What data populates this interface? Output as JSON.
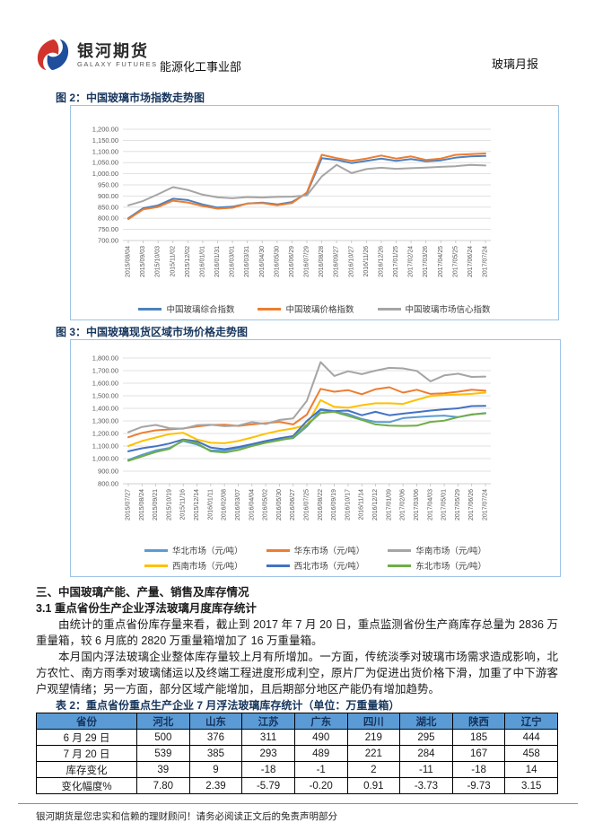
{
  "header": {
    "logo_cn": "银河期货",
    "logo_en": "GALAXY FUTURES",
    "department": "能源化工事业部",
    "report_name": "玻璃月报",
    "logo_red": "#D0342C",
    "logo_blue": "#1F4E9C"
  },
  "figure2_caption": "图 2：中国玻璃市场指数走势图",
  "figure3_caption": "图 3：中国玻璃现货区域市场价格走势图",
  "chart_data": [
    {
      "type": "line",
      "title": "中国玻璃市场指数走势图",
      "ylim": [
        700,
        1200
      ],
      "ytick": 50,
      "grid": true,
      "legend_position": "bottom",
      "legend_cols": 3,
      "x": [
        "2015/08/04",
        "2015/09/03",
        "2015/10/03",
        "2015/11/02",
        "2015/12/02",
        "2016/01/01",
        "2016/01/31",
        "2016/03/01",
        "2016/03/31",
        "2016/04/30",
        "2016/05/30",
        "2016/06/29",
        "2016/07/29",
        "2016/08/28",
        "2016/09/27",
        "2016/10/27",
        "2016/11/26",
        "2016/12/26",
        "2017/01/25",
        "2017/02/24",
        "2017/03/26",
        "2017/04/25",
        "2017/05/25",
        "2017/06/24",
        "2017/07/24"
      ],
      "series": [
        {
          "name": "中国玻璃综合指数",
          "color": "#4E81BD",
          "values": [
            800,
            845,
            858,
            888,
            882,
            862,
            848,
            852,
            866,
            870,
            862,
            873,
            912,
            1070,
            1062,
            1048,
            1058,
            1068,
            1058,
            1066,
            1056,
            1060,
            1072,
            1078,
            1080
          ]
        },
        {
          "name": "中国玻璃价格指数",
          "color": "#ED7D31",
          "values": [
            796,
            840,
            851,
            879,
            871,
            855,
            843,
            847,
            866,
            868,
            858,
            868,
            916,
            1085,
            1070,
            1058,
            1068,
            1082,
            1068,
            1078,
            1062,
            1068,
            1085,
            1088,
            1091
          ]
        },
        {
          "name": "中国玻璃市场信心指数",
          "color": "#A5A5A5",
          "values": [
            858,
            878,
            908,
            940,
            927,
            906,
            894,
            890,
            895,
            893,
            896,
            897,
            903,
            988,
            1040,
            1003,
            1021,
            1027,
            1022,
            1025,
            1028,
            1031,
            1034,
            1040,
            1037
          ]
        }
      ]
    },
    {
      "type": "line",
      "title": "中国玻璃现货区域市场价格走势图",
      "ylim": [
        800,
        1800
      ],
      "ytick": 100,
      "grid": true,
      "legend_position": "bottom",
      "legend_cols": 3,
      "x": [
        "2015/07/27",
        "2015/08/24",
        "2015/09/21",
        "2015/10/19",
        "2015/11/16",
        "2015/12/14",
        "2016/01/11",
        "2016/02/08",
        "2016/03/07",
        "2016/04/04",
        "2016/05/02",
        "2016/05/30",
        "2016/06/27",
        "2016/07/25",
        "2016/08/22",
        "2016/09/19",
        "2016/10/17",
        "2016/11/14",
        "2016/12/12",
        "2017/01/09",
        "2017/02/06",
        "2017/03/06",
        "2017/04/03",
        "2017/05/01",
        "2017/05/29",
        "2017/06/26",
        "2017/07/24"
      ],
      "series": [
        {
          "name": "华北市场（元/吨）",
          "color": "#5B9BD5",
          "values": [
            990,
            1030,
            1065,
            1085,
            1140,
            1112,
            1065,
            1062,
            1085,
            1110,
            1135,
            1150,
            1162,
            1255,
            1385,
            1372,
            1355,
            1315,
            1292,
            1290,
            1322,
            1330,
            1338,
            1342,
            1330,
            1350,
            1362
          ]
        },
        {
          "name": "华东市场（元/吨）",
          "color": "#ED7D31",
          "values": [
            1170,
            1205,
            1225,
            1232,
            1240,
            1256,
            1268,
            1270,
            1260,
            1272,
            1282,
            1292,
            1272,
            1350,
            1555,
            1532,
            1545,
            1512,
            1552,
            1568,
            1525,
            1548,
            1515,
            1520,
            1532,
            1548,
            1540
          ]
        },
        {
          "name": "华南市场（元/吨）",
          "color": "#A5A5A5",
          "values": [
            1210,
            1252,
            1268,
            1242,
            1238,
            1266,
            1270,
            1258,
            1263,
            1290,
            1275,
            1308,
            1320,
            1460,
            1768,
            1658,
            1695,
            1672,
            1700,
            1722,
            1718,
            1698,
            1615,
            1662,
            1676,
            1650,
            1653
          ]
        },
        {
          "name": "西南市场（元/吨）",
          "color": "#FFC000",
          "values": [
            1100,
            1140,
            1168,
            1195,
            1205,
            1152,
            1126,
            1122,
            1140,
            1168,
            1198,
            1222,
            1240,
            1268,
            1465,
            1412,
            1405,
            1425,
            1440,
            1440,
            1435,
            1468,
            1498,
            1505,
            1510,
            1515,
            1525
          ]
        },
        {
          "name": "西北市场（元/吨）",
          "color": "#4472C4",
          "values": [
            1058,
            1082,
            1098,
            1120,
            1152,
            1138,
            1088,
            1075,
            1092,
            1115,
            1140,
            1162,
            1180,
            1300,
            1392,
            1378,
            1382,
            1345,
            1372,
            1345,
            1358,
            1370,
            1382,
            1392,
            1400,
            1418,
            1420
          ]
        },
        {
          "name": "东北市场（元/吨）",
          "color": "#70AD47",
          "values": [
            982,
            1018,
            1052,
            1078,
            1148,
            1122,
            1058,
            1048,
            1068,
            1100,
            1126,
            1146,
            1168,
            1268,
            1362,
            1372,
            1340,
            1308,
            1272,
            1262,
            1260,
            1262,
            1292,
            1302,
            1330,
            1352,
            1360
          ]
        }
      ]
    }
  ],
  "section": {
    "heading": "三、中国玻璃产能、产量、销售及库存情况",
    "subheading": "3.1 重点省份生产企业浮法玻璃月度库存统计",
    "para1": "由统计的重点省份库存量来看，截止到 2017 年 7 月 20 日，重点监测省份生产商库存总量为 2836 万重量箱，较 6 月底的 2820 万重量箱增加了 16 万重量箱。",
    "para2": "本月国内浮法玻璃企业整体库存量较上月有所增加。一方面，传统淡季对玻璃市场需求造成影响，北方农忙、南方雨季对玻璃储运以及终端工程进度形成利空，原片厂为促进出货价格下滑，加重了中下游客户观望情绪；另一方面，部分区域产能增加，且后期部分地区产能仍有增加趋势。"
  },
  "table": {
    "caption": "表 2：重点省份重点生产企业 7 月浮法玻璃库存统计（单位：万重量箱）",
    "headers": [
      "省份",
      "河北",
      "山东",
      "江苏",
      "广东",
      "四川",
      "湖北",
      "陕西",
      "辽宁"
    ],
    "rows": [
      [
        "6 月 29 日",
        "500",
        "376",
        "311",
        "490",
        "219",
        "295",
        "185",
        "444"
      ],
      [
        "7 月 20 日",
        "539",
        "385",
        "293",
        "489",
        "221",
        "284",
        "167",
        "458"
      ],
      [
        "库存变化",
        "39",
        "9",
        "-18",
        "-1",
        "2",
        "-11",
        "-18",
        "14"
      ],
      [
        "变化幅度%",
        "7.80",
        "2.39",
        "-5.79",
        "-0.20",
        "0.91",
        "-3.73",
        "-9.73",
        "3.15"
      ]
    ]
  },
  "footer": {
    "disclaimer": "银河期货是您忠实和信赖的理财顾问！请务必阅读正文后的免责声明部分"
  }
}
